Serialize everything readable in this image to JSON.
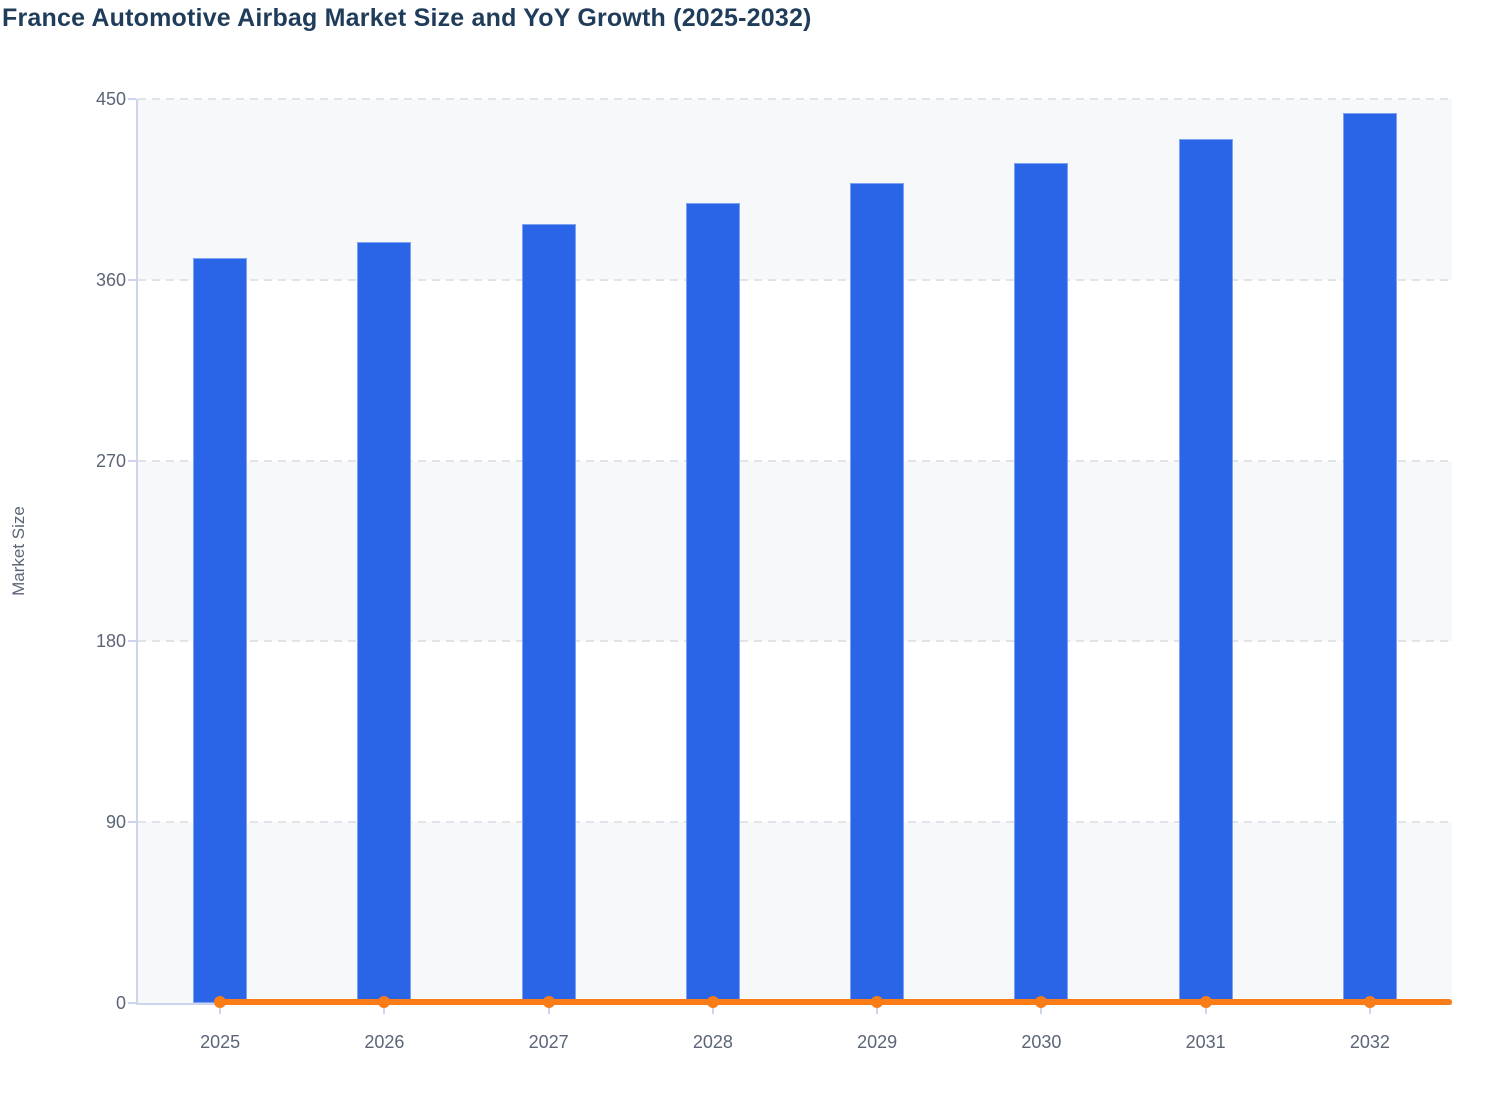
{
  "page": {
    "title": "France Automotive Airbag Market Size and YoY Growth (2025-2032)"
  },
  "chart_data": {
    "type": "bar",
    "title": "France Automotive Airbag Market Size and YoY Growth (2025-2032)",
    "xlabel": "",
    "ylabel": "Market Size",
    "categories": [
      "2025",
      "2026",
      "2027",
      "2028",
      "2029",
      "2030",
      "2031",
      "2032"
    ],
    "series": [
      {
        "name": "Market Size",
        "type": "bar",
        "color": "#2a65e8",
        "values": [
          371,
          379,
          388,
          398,
          408,
          418,
          430,
          443
        ]
      },
      {
        "name": "YoY Growth",
        "type": "line",
        "color": "#f97c16",
        "values": [
          0,
          0,
          0,
          0,
          0,
          0,
          0,
          0
        ],
        "note": "line with circular markers rendered flat along the 0 baseline"
      }
    ],
    "y_axis": {
      "min": 0,
      "max": 450,
      "ticks": [
        450,
        360,
        270,
        180,
        90,
        0
      ]
    },
    "x_axis": {
      "ticks": [
        "2025",
        "2026",
        "2027",
        "2028",
        "2029",
        "2030",
        "2031",
        "2032"
      ]
    },
    "grid": "horizontal dashed gridlines with alternating background bands",
    "legend": "none"
  },
  "theme": {
    "title_color": "#1f3d5b",
    "axis_text_color": "#5b6577",
    "axis_line_color": "#ccd4ee",
    "gridline_color": "#e0e3e8",
    "band_fill_color": "#f7f8fa",
    "band_alt_color": "#ffffff",
    "bar_color": "#2a65e8",
    "line_color": "#f97c16",
    "background_color": "#ffffff"
  }
}
